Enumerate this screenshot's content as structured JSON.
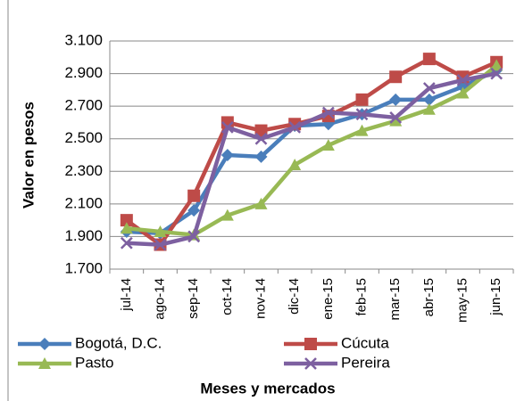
{
  "chart_data": {
    "type": "line",
    "x_label": "Meses y mercados",
    "y_label": "Valor en pesos",
    "categories": [
      "jul-14",
      "ago-14",
      "sep-14",
      "oct-14",
      "nov-14",
      "dic-14",
      "ene-15",
      "feb-15",
      "mar-15",
      "abr-15",
      "may-15",
      "jun-15"
    ],
    "series": [
      {
        "name": "Bogotá, D.C.",
        "color": "#4a7ebb",
        "marker": "diamond",
        "values": [
          1930,
          1920,
          2060,
          2400,
          2390,
          2580,
          2590,
          2650,
          2740,
          2740,
          2820,
          2920
        ]
      },
      {
        "name": "Cúcuta",
        "color": "#be4b48",
        "marker": "square",
        "values": [
          2000,
          1850,
          2150,
          2600,
          2550,
          2590,
          2640,
          2740,
          2880,
          2990,
          2880,
          2970
        ]
      },
      {
        "name": "Pasto",
        "color": "#98b954",
        "marker": "triangle",
        "values": [
          1950,
          1930,
          1910,
          2030,
          2100,
          2340,
          2460,
          2550,
          2610,
          2680,
          2780,
          2950
        ]
      },
      {
        "name": "Pereira",
        "color": "#7d60a0",
        "marker": "x",
        "values": [
          1860,
          1850,
          1900,
          2570,
          2500,
          2570,
          2660,
          2650,
          2630,
          2810,
          2860,
          2900
        ]
      }
    ],
    "ylim": [
      1700,
      3100
    ],
    "yticks": [
      {
        "value": 1700,
        "label": "1.700"
      },
      {
        "value": 1900,
        "label": "1.900"
      },
      {
        "value": 2100,
        "label": "2.100"
      },
      {
        "value": 2300,
        "label": "2.300"
      },
      {
        "value": 2500,
        "label": "2.500"
      },
      {
        "value": 2700,
        "label": "2.700"
      },
      {
        "value": 2900,
        "label": "2.900"
      },
      {
        "value": 3100,
        "label": "3.100"
      }
    ],
    "grid": true
  }
}
